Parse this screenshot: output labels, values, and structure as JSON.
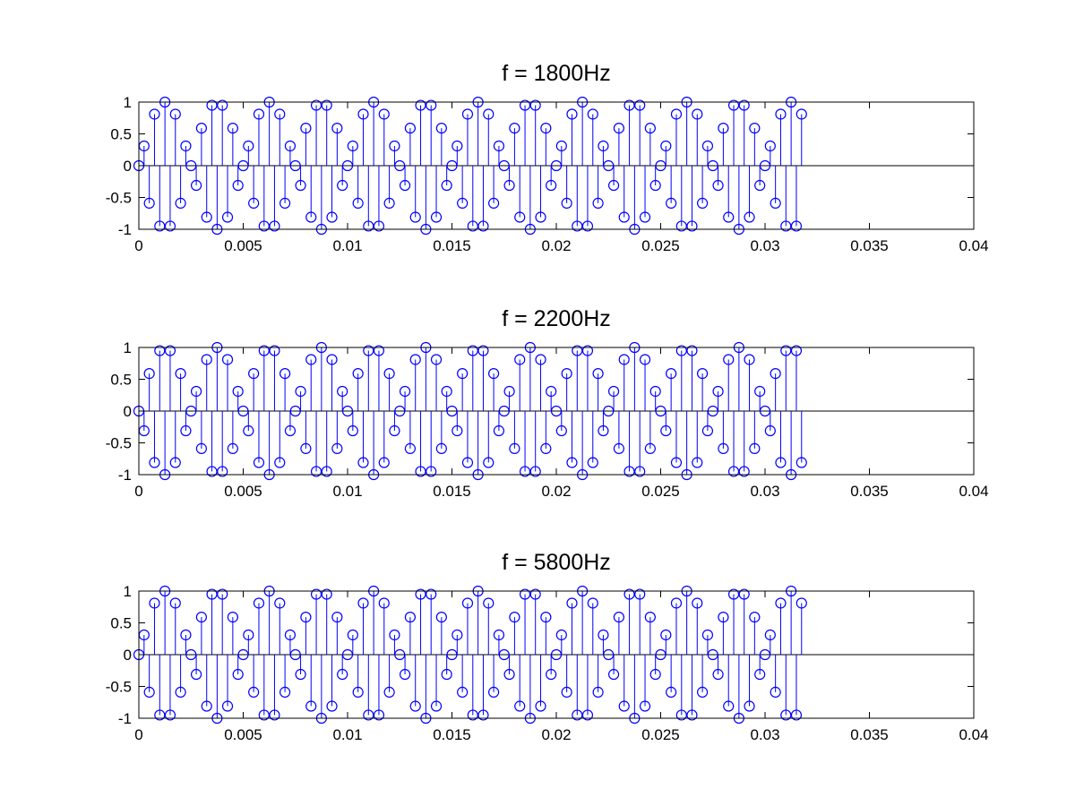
{
  "chart_data": [
    {
      "type": "stem",
      "title": "f = 1800Hz",
      "xlabel": "",
      "ylabel": "",
      "xlim": [
        0,
        0.04
      ],
      "ylim": [
        -1,
        1
      ],
      "x_ticks": [
        "0",
        "0.005",
        "0.01",
        "0.015",
        "0.02",
        "0.025",
        "0.03",
        "0.035",
        "0.04"
      ],
      "y_ticks": [
        "1",
        "0.5",
        "0",
        "-0.5",
        "-1"
      ],
      "grid": false,
      "color": "#0000ff",
      "sample_interval": 0.00025,
      "x_start": 0,
      "values": [
        0.0,
        0.31,
        -0.59,
        0.81,
        -0.95,
        1.0,
        -0.95,
        0.81,
        -0.59,
        0.31,
        0.0,
        -0.31,
        0.59,
        -0.81,
        0.95,
        -1.0,
        0.95,
        -0.81,
        0.59,
        -0.31,
        0.0,
        0.31,
        -0.59,
        0.81,
        -0.95,
        1.0,
        -0.95,
        0.81,
        -0.59,
        0.31,
        0.0,
        -0.31,
        0.59,
        -0.81,
        0.95,
        -1.0,
        0.95,
        -0.81,
        0.59,
        -0.31,
        0.0,
        0.31,
        -0.59,
        0.81,
        -0.95,
        1.0,
        -0.95,
        0.81,
        -0.59,
        0.31,
        0.0,
        -0.31,
        0.59,
        -0.81,
        0.95,
        -1.0,
        0.95,
        -0.81,
        0.59,
        -0.31,
        0.0,
        0.31,
        -0.59,
        0.81,
        -0.95,
        1.0,
        -0.95,
        0.81,
        -0.59,
        0.31,
        0.0,
        -0.31,
        0.59,
        -0.81,
        0.95,
        -1.0,
        0.95,
        -0.81,
        0.59,
        -0.31,
        0.0,
        0.31,
        -0.59,
        0.81,
        -0.95,
        1.0,
        -0.95,
        0.81,
        -0.59,
        0.31,
        0.0,
        -0.31,
        0.59,
        -0.81,
        0.95,
        -1.0,
        0.95,
        -0.81,
        0.59,
        -0.31,
        0.0,
        0.31,
        -0.59,
        0.81,
        -0.95,
        1.0,
        -0.95,
        0.81,
        -0.59,
        0.31,
        0.0,
        -0.31,
        0.59,
        -0.81,
        0.95,
        -1.0,
        0.95,
        -0.81,
        0.59,
        -0.31,
        0.0,
        0.31,
        -0.59,
        0.81,
        -0.95,
        1.0,
        -0.95,
        0.81
      ]
    },
    {
      "type": "stem",
      "title": "f = 2200Hz",
      "xlabel": "",
      "ylabel": "",
      "xlim": [
        0,
        0.04
      ],
      "ylim": [
        -1,
        1
      ],
      "x_ticks": [
        "0",
        "0.005",
        "0.01",
        "0.015",
        "0.02",
        "0.025",
        "0.03",
        "0.035",
        "0.04"
      ],
      "y_ticks": [
        "1",
        "0.5",
        "0",
        "-0.5",
        "-1"
      ],
      "grid": false,
      "color": "#0000ff",
      "sample_interval": 0.00025,
      "x_start": 0,
      "values": [
        0.0,
        -0.31,
        0.59,
        -0.81,
        0.95,
        -1.0,
        0.95,
        -0.81,
        0.59,
        -0.31,
        0.0,
        0.31,
        -0.59,
        0.81,
        -0.95,
        1.0,
        -0.95,
        0.81,
        -0.59,
        0.31,
        0.0,
        -0.31,
        0.59,
        -0.81,
        0.95,
        -1.0,
        0.95,
        -0.81,
        0.59,
        -0.31,
        0.0,
        0.31,
        -0.59,
        0.81,
        -0.95,
        1.0,
        -0.95,
        0.81,
        -0.59,
        0.31,
        0.0,
        -0.31,
        0.59,
        -0.81,
        0.95,
        -1.0,
        0.95,
        -0.81,
        0.59,
        -0.31,
        0.0,
        0.31,
        -0.59,
        0.81,
        -0.95,
        1.0,
        -0.95,
        0.81,
        -0.59,
        0.31,
        0.0,
        -0.31,
        0.59,
        -0.81,
        0.95,
        -1.0,
        0.95,
        -0.81,
        0.59,
        -0.31,
        0.0,
        0.31,
        -0.59,
        0.81,
        -0.95,
        1.0,
        -0.95,
        0.81,
        -0.59,
        0.31,
        0.0,
        -0.31,
        0.59,
        -0.81,
        0.95,
        -1.0,
        0.95,
        -0.81,
        0.59,
        -0.31,
        0.0,
        0.31,
        -0.59,
        0.81,
        -0.95,
        1.0,
        -0.95,
        0.81,
        -0.59,
        0.31,
        0.0,
        -0.31,
        0.59,
        -0.81,
        0.95,
        -1.0,
        0.95,
        -0.81,
        0.59,
        -0.31,
        0.0,
        0.31,
        -0.59,
        0.81,
        -0.95,
        1.0,
        -0.95,
        0.81,
        -0.59,
        0.31,
        0.0,
        -0.31,
        0.59,
        -0.81,
        0.95,
        -1.0,
        0.95,
        -0.81
      ]
    },
    {
      "type": "stem",
      "title": "f = 5800Hz",
      "xlabel": "",
      "ylabel": "",
      "xlim": [
        0,
        0.04
      ],
      "ylim": [
        -1,
        1
      ],
      "x_ticks": [
        "0",
        "0.005",
        "0.01",
        "0.015",
        "0.02",
        "0.025",
        "0.03",
        "0.035",
        "0.04"
      ],
      "y_ticks": [
        "1",
        "0.5",
        "0",
        "-0.5",
        "-1"
      ],
      "grid": false,
      "color": "#0000ff",
      "sample_interval": 0.00025,
      "x_start": 0,
      "values": [
        0.0,
        0.31,
        -0.59,
        0.81,
        -0.95,
        1.0,
        -0.95,
        0.81,
        -0.59,
        0.31,
        0.0,
        -0.31,
        0.59,
        -0.81,
        0.95,
        -1.0,
        0.95,
        -0.81,
        0.59,
        -0.31,
        0.0,
        0.31,
        -0.59,
        0.81,
        -0.95,
        1.0,
        -0.95,
        0.81,
        -0.59,
        0.31,
        0.0,
        -0.31,
        0.59,
        -0.81,
        0.95,
        -1.0,
        0.95,
        -0.81,
        0.59,
        -0.31,
        0.0,
        0.31,
        -0.59,
        0.81,
        -0.95,
        1.0,
        -0.95,
        0.81,
        -0.59,
        0.31,
        0.0,
        -0.31,
        0.59,
        -0.81,
        0.95,
        -1.0,
        0.95,
        -0.81,
        0.59,
        -0.31,
        0.0,
        0.31,
        -0.59,
        0.81,
        -0.95,
        1.0,
        -0.95,
        0.81,
        -0.59,
        0.31,
        0.0,
        -0.31,
        0.59,
        -0.81,
        0.95,
        -1.0,
        0.95,
        -0.81,
        0.59,
        -0.31,
        0.0,
        0.31,
        -0.59,
        0.81,
        -0.95,
        1.0,
        -0.95,
        0.81,
        -0.59,
        0.31,
        0.0,
        -0.31,
        0.59,
        -0.81,
        0.95,
        -1.0,
        0.95,
        -0.81,
        0.59,
        -0.31,
        0.0,
        0.31,
        -0.59,
        0.81,
        -0.95,
        1.0,
        -0.95,
        0.81,
        -0.59,
        0.31,
        0.0,
        -0.31,
        0.59,
        -0.81,
        0.95,
        -1.0,
        0.95,
        -0.81,
        0.59,
        -0.31,
        0.0,
        0.31,
        -0.59,
        0.81,
        -0.95,
        1.0,
        -0.95,
        0.81
      ]
    }
  ]
}
